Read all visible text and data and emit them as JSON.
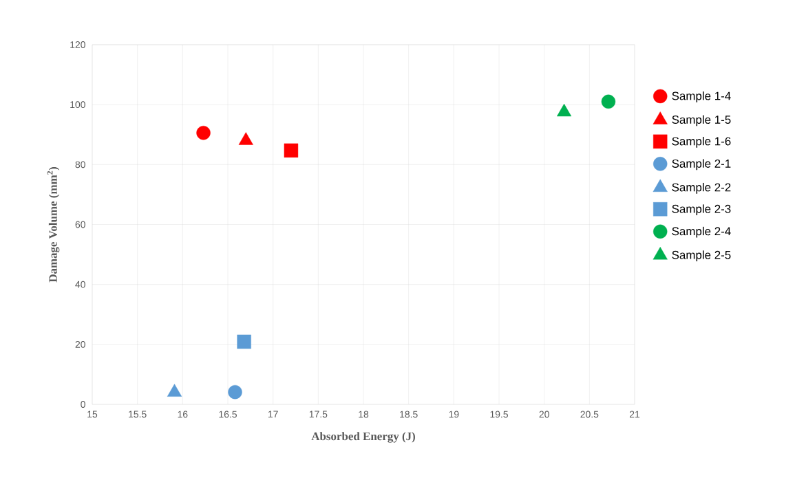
{
  "chart_data": {
    "type": "scatter",
    "xlabel": "Absorbed Energy (J)",
    "ylabel": "Damage Volume (mm$^{2}$)",
    "xlim": [
      15,
      21
    ],
    "xticks": [
      15,
      15.5,
      16,
      16.5,
      17,
      17.5,
      18,
      18.5,
      19,
      19.5,
      20,
      20.5,
      21
    ],
    "ylim": [
      0,
      120
    ],
    "yticks": [
      0,
      20,
      40,
      60,
      80,
      100,
      120
    ],
    "grid": true,
    "legend": "right",
    "series": [
      {
        "name": "Sample 1-4",
        "color": "#ff0000",
        "marker": "circle",
        "x": [
          16.23
        ],
        "values": [
          90.6
        ]
      },
      {
        "name": "Sample 1-5",
        "color": "#ff0000",
        "marker": "triangle",
        "x": [
          16.7
        ],
        "values": [
          88
        ]
      },
      {
        "name": "Sample 1-6",
        "color": "#ff0000",
        "marker": "square",
        "x": [
          17.2
        ],
        "values": [
          84.7
        ]
      },
      {
        "name": "Sample 2-1",
        "color": "#5b9bd5",
        "marker": "circle",
        "x": [
          16.58
        ],
        "values": [
          4.1
        ]
      },
      {
        "name": "Sample 2-2",
        "color": "#5b9bd5",
        "marker": "triangle",
        "x": [
          15.91
        ],
        "values": [
          4
        ]
      },
      {
        "name": "Sample 2-3",
        "color": "#5b9bd5",
        "marker": "square",
        "x": [
          16.68
        ],
        "values": [
          20.9
        ]
      },
      {
        "name": "Sample 2-4",
        "color": "#00b050",
        "marker": "circle",
        "x": [
          20.71
        ],
        "values": [
          101
        ]
      },
      {
        "name": "Sample 2-5",
        "color": "#00b050",
        "marker": "triangle",
        "x": [
          20.22
        ],
        "values": [
          97.5
        ]
      }
    ]
  }
}
